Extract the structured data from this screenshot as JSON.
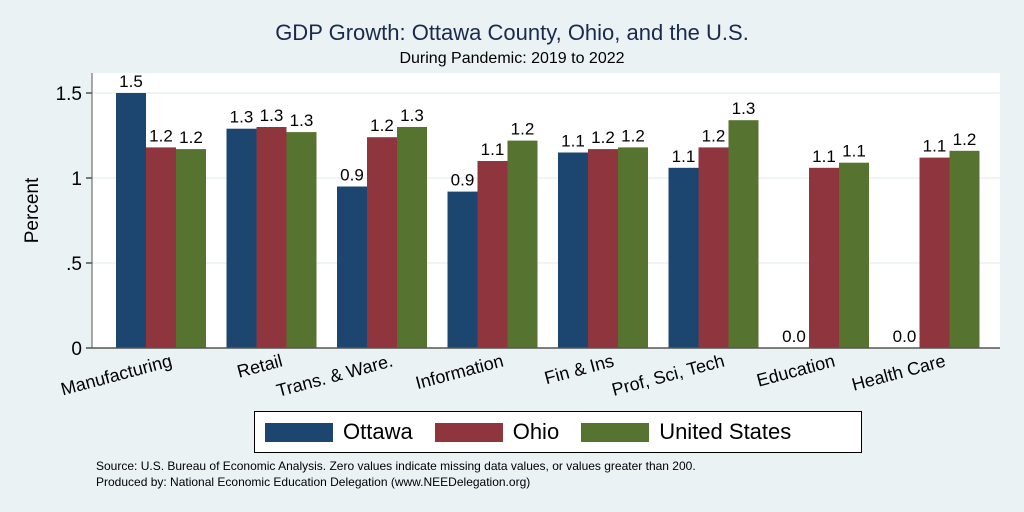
{
  "chart_data": {
    "type": "bar",
    "title": "GDP Growth: Ottawa County, Ohio, and the U.S.",
    "subtitle": "During Pandemic: 2019 to 2022",
    "xlabel": "",
    "ylabel": "Percent",
    "ylim": [
      0,
      1.6
    ],
    "yticks": [
      0,
      0.5,
      1,
      1.5
    ],
    "ytick_labels": [
      "0",
      ".5",
      "1",
      "1.5"
    ],
    "grid": true,
    "legend_position": "bottom",
    "categories": [
      "Manufacturing",
      "Retail",
      "Trans. & Ware.",
      "Information",
      "Fin & Ins",
      "Prof, Sci, Tech",
      "Education",
      "Health Care"
    ],
    "series": [
      {
        "name": "Ottawa",
        "color": "#1c4670",
        "values": [
          1.5,
          1.29,
          0.95,
          0.92,
          1.15,
          1.06,
          0.0,
          0.0
        ],
        "labels": [
          "1.5",
          "1.3",
          "0.9",
          "0.9",
          "1.1",
          "1.1",
          "0.0",
          "0.0"
        ]
      },
      {
        "name": "Ohio",
        "color": "#8e353e",
        "values": [
          1.18,
          1.3,
          1.24,
          1.1,
          1.17,
          1.18,
          1.06,
          1.12
        ],
        "labels": [
          "1.2",
          "1.3",
          "1.2",
          "1.1",
          "1.2",
          "1.2",
          "1.1",
          "1.1"
        ]
      },
      {
        "name": "United States",
        "color": "#577330",
        "values": [
          1.17,
          1.27,
          1.3,
          1.22,
          1.18,
          1.34,
          1.09,
          1.16
        ],
        "labels": [
          "1.2",
          "1.3",
          "1.3",
          "1.2",
          "1.2",
          "1.3",
          "1.1",
          "1.2"
        ]
      }
    ],
    "notes": [
      "Source: U.S. Bureau of Economic Analysis. Zero values indicate missing data values, or values greater than 200.",
      "Produced by: National Economic Education Delegation (www.NEEDelegation.org)"
    ]
  }
}
